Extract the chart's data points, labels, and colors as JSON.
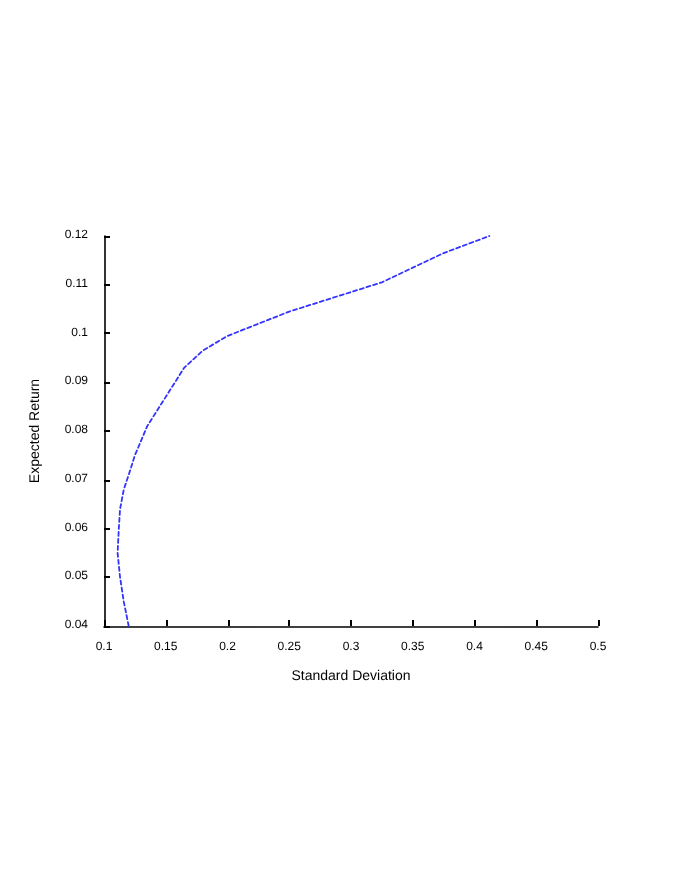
{
  "chart_data": {
    "type": "line",
    "xlabel": "Standard Deviation",
    "ylabel": "Expected Return",
    "series": [
      {
        "color": "#3333ff",
        "x": [
          0.12,
          0.116,
          0.113,
          0.111,
          0.112,
          0.113,
          0.116,
          0.12,
          0.125,
          0.135,
          0.15,
          0.165,
          0.18,
          0.2,
          0.225,
          0.25,
          0.275,
          0.3,
          0.325,
          0.35,
          0.375,
          0.412
        ],
        "values": [
          0.04,
          0.045,
          0.05,
          0.055,
          0.06,
          0.064,
          0.068,
          0.071,
          0.075,
          0.081,
          0.087,
          0.093,
          0.0965,
          0.0995,
          0.102,
          0.1045,
          0.1065,
          0.1085,
          0.1105,
          0.1135,
          0.1165,
          0.12
        ]
      }
    ],
    "xlim": [
      0.1,
      0.5
    ],
    "xticks": [
      0.1,
      0.15,
      0.2,
      0.25,
      0.3,
      0.35,
      0.4,
      0.45,
      0.5
    ],
    "ylim": [
      0.04,
      0.12
    ],
    "yticks": [
      0.04,
      0.05,
      0.06,
      0.07,
      0.08,
      0.09,
      0.1,
      0.11,
      0.12
    ],
    "grid": false,
    "marker": "none",
    "line_style": "dotted"
  }
}
